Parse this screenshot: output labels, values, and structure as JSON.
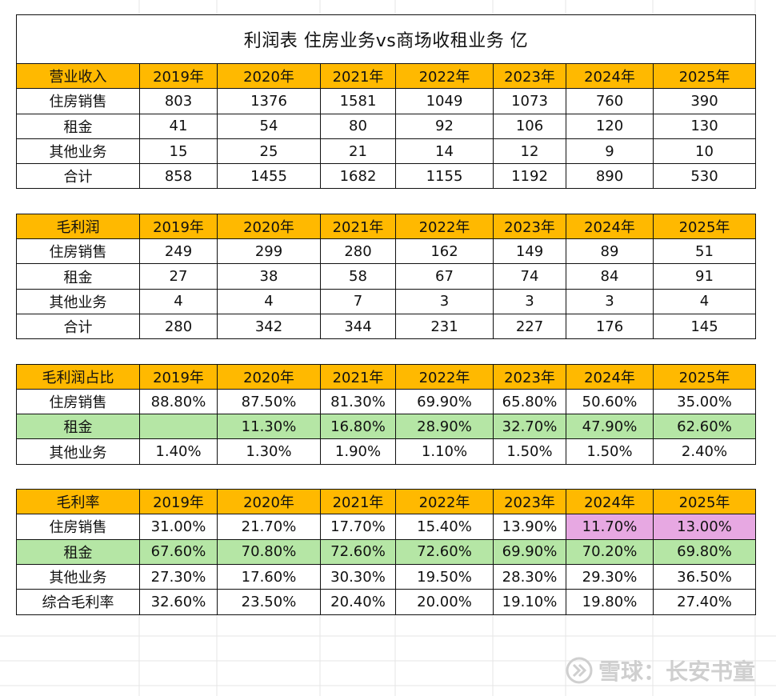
{
  "title": "利润表 住房业务vs商场收租业务       亿",
  "years": [
    "2019年",
    "2020年",
    "2021年",
    "2022年",
    "2023年",
    "2024年",
    "2025年"
  ],
  "sections": [
    {
      "header": "营业收入",
      "rows": [
        {
          "label": "住房销售",
          "values": [
            "803",
            "1376",
            "1581",
            "1049",
            "1073",
            "760",
            "390"
          ]
        },
        {
          "label": "租金",
          "values": [
            "41",
            "54",
            "80",
            "92",
            "106",
            "120",
            "130"
          ]
        },
        {
          "label": "其他业务",
          "values": [
            "15",
            "25",
            "21",
            "14",
            "12",
            "9",
            "10"
          ]
        },
        {
          "label": "合计",
          "values": [
            "858",
            "1455",
            "1682",
            "1155",
            "1192",
            "890",
            "530"
          ]
        }
      ]
    },
    {
      "header": "毛利润",
      "rows": [
        {
          "label": "住房销售",
          "values": [
            "249",
            "299",
            "280",
            "162",
            "149",
            "89",
            "51"
          ]
        },
        {
          "label": "租金",
          "values": [
            "27",
            "38",
            "58",
            "67",
            "74",
            "84",
            "91"
          ]
        },
        {
          "label": "其他业务",
          "values": [
            "4",
            "4",
            "7",
            "3",
            "3",
            "3",
            "4"
          ]
        },
        {
          "label": "合计",
          "values": [
            "280",
            "342",
            "344",
            "231",
            "227",
            "176",
            "145"
          ]
        }
      ]
    },
    {
      "header": "毛利润占比",
      "rows": [
        {
          "label": "住房销售",
          "values": [
            "88.80%",
            "87.50%",
            "81.30%",
            "69.90%",
            "65.80%",
            "50.60%",
            "35.00%"
          ]
        },
        {
          "label": "租金",
          "values": [
            "",
            "11.30%",
            "16.80%",
            "28.90%",
            "32.70%",
            "47.90%",
            "62.60%"
          ],
          "highlight": "#B5E6A5"
        },
        {
          "label": "其他业务",
          "values": [
            "1.40%",
            "1.30%",
            "1.90%",
            "1.10%",
            "1.50%",
            "1.50%",
            "2.40%"
          ]
        }
      ]
    },
    {
      "header": "毛利率",
      "rows": [
        {
          "label": "住房销售",
          "values": [
            "31.00%",
            "21.70%",
            "17.70%",
            "15.40%",
            "13.90%",
            "11.70%",
            "13.00%"
          ],
          "pink_cells": [
            5,
            6
          ]
        },
        {
          "label": "租金",
          "values": [
            "67.60%",
            "70.80%",
            "72.60%",
            "72.60%",
            "69.90%",
            "70.20%",
            "69.80%"
          ],
          "highlight": "#B5E6A5"
        },
        {
          "label": "其他业务",
          "values": [
            "27.30%",
            "17.60%",
            "30.30%",
            "19.50%",
            "28.30%",
            "29.30%",
            "36.50%"
          ]
        },
        {
          "label": "综合毛利率",
          "values": [
            "32.60%",
            "23.50%",
            "20.40%",
            "20.00%",
            "19.10%",
            "19.80%",
            "27.40%"
          ]
        }
      ]
    }
  ],
  "colors": {
    "header": "#FFB900",
    "green": "#B5E6A5",
    "pink": "#E7A8E2"
  },
  "watermark": {
    "text": "雪球：长安书童",
    "icon": "snowball-logo-icon"
  }
}
